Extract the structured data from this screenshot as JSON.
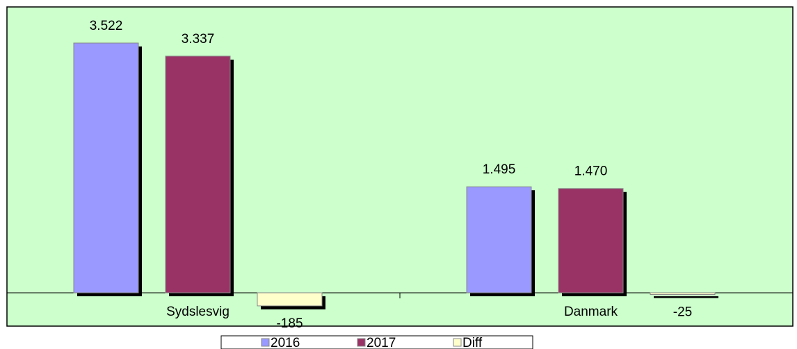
{
  "chart_data": {
    "type": "bar",
    "categories": [
      "Sydslesvig",
      "Danmark"
    ],
    "series": [
      {
        "name": "2016",
        "color": "#9999ff",
        "values": [
          3522,
          1495
        ],
        "value_labels": [
          "3.522",
          "1.495"
        ]
      },
      {
        "name": "2017",
        "color": "#993366",
        "values": [
          3337,
          1470
        ],
        "value_labels": [
          "3.337",
          "1.470"
        ]
      },
      {
        "name": "Diff",
        "color": "#ffffcc",
        "values": [
          -185,
          -25
        ],
        "value_labels": [
          "-185",
          "-25"
        ]
      }
    ],
    "ylim": [
      -470,
      4031
    ],
    "legend": "bottom"
  }
}
